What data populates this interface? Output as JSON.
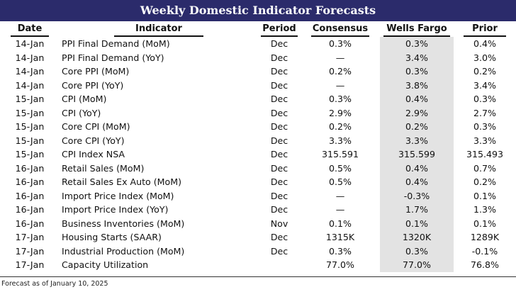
{
  "title": "Weekly Domestic Indicator Forecasts",
  "columns": {
    "date": "Date",
    "indicator": "Indicator",
    "period": "Period",
    "consensus": "Consensus",
    "wells_fargo": "Wells Fargo",
    "prior": "Prior"
  },
  "rows": [
    {
      "date": "14-Jan",
      "indicator": "PPI Final Demand (MoM)",
      "period": "Dec",
      "consensus": "0.3%",
      "wells_fargo": "0.3%",
      "prior": "0.4%"
    },
    {
      "date": "14-Jan",
      "indicator": "PPI Final Demand (YoY)",
      "period": "Dec",
      "consensus": "—",
      "wells_fargo": "3.4%",
      "prior": "3.0%"
    },
    {
      "date": "14-Jan",
      "indicator": "Core PPI (MoM)",
      "period": "Dec",
      "consensus": "0.2%",
      "wells_fargo": "0.3%",
      "prior": "0.2%"
    },
    {
      "date": "14-Jan",
      "indicator": "Core PPI (YoY)",
      "period": "Dec",
      "consensus": "—",
      "wells_fargo": "3.8%",
      "prior": "3.4%"
    },
    {
      "date": "15-Jan",
      "indicator": "CPI (MoM)",
      "period": "Dec",
      "consensus": "0.3%",
      "wells_fargo": "0.4%",
      "prior": "0.3%"
    },
    {
      "date": "15-Jan",
      "indicator": "CPI (YoY)",
      "period": "Dec",
      "consensus": "2.9%",
      "wells_fargo": "2.9%",
      "prior": "2.7%"
    },
    {
      "date": "15-Jan",
      "indicator": "Core CPI (MoM)",
      "period": "Dec",
      "consensus": "0.2%",
      "wells_fargo": "0.2%",
      "prior": "0.3%"
    },
    {
      "date": "15-Jan",
      "indicator": "Core CPI (YoY)",
      "period": "Dec",
      "consensus": "3.3%",
      "wells_fargo": "3.3%",
      "prior": "3.3%"
    },
    {
      "date": "15-Jan",
      "indicator": "CPI Index NSA",
      "period": "Dec",
      "consensus": "315.591",
      "wells_fargo": "315.599",
      "prior": "315.493"
    },
    {
      "date": "16-Jan",
      "indicator": "Retail Sales (MoM)",
      "period": "Dec",
      "consensus": "0.5%",
      "wells_fargo": "0.4%",
      "prior": "0.7%"
    },
    {
      "date": "16-Jan",
      "indicator": "Retail Sales Ex Auto (MoM)",
      "period": "Dec",
      "consensus": "0.5%",
      "wells_fargo": "0.4%",
      "prior": "0.2%"
    },
    {
      "date": "16-Jan",
      "indicator": "Import Price Index (MoM)",
      "period": "Dec",
      "consensus": "—",
      "wells_fargo": "-0.3%",
      "prior": "0.1%"
    },
    {
      "date": "16-Jan",
      "indicator": "Import Price Index (YoY)",
      "period": "Dec",
      "consensus": "—",
      "wells_fargo": "1.7%",
      "prior": "1.3%"
    },
    {
      "date": "16-Jan",
      "indicator": "Business Inventories (MoM)",
      "period": "Nov",
      "consensus": "0.1%",
      "wells_fargo": "0.1%",
      "prior": "0.1%"
    },
    {
      "date": "17-Jan",
      "indicator": "Housing Starts (SAAR)",
      "period": "Dec",
      "consensus": "1315K",
      "wells_fargo": "1320K",
      "prior": "1289K"
    },
    {
      "date": "17-Jan",
      "indicator": "Industrial Production (MoM)",
      "period": "Dec",
      "consensus": "0.3%",
      "wells_fargo": "0.3%",
      "prior": "-0.1%"
    },
    {
      "date": "17-Jan",
      "indicator": "Capacity Utilization",
      "period": "",
      "consensus": "77.0%",
      "wells_fargo": "77.0%",
      "prior": "76.8%"
    }
  ],
  "footnote": "Forecast as of January 10, 2025",
  "colors": {
    "title_bar": "#2b2b6b",
    "highlight_column": "#e3e3e3"
  }
}
